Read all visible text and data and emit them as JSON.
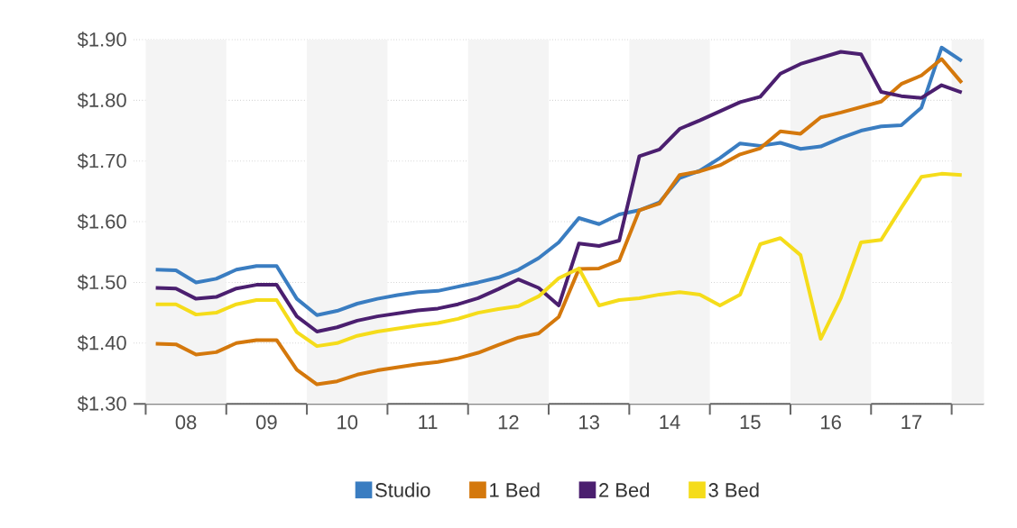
{
  "chart_data": {
    "type": "line",
    "x": [
      7.625,
      7.875,
      8.125,
      8.375,
      8.625,
      8.875,
      9.125,
      9.375,
      9.625,
      9.875,
      10.125,
      10.375,
      10.625,
      10.875,
      11.125,
      11.375,
      11.625,
      11.875,
      12.125,
      12.375,
      12.625,
      12.875,
      13.125,
      13.375,
      13.625,
      13.875,
      14.125,
      14.375,
      14.625,
      14.875,
      15.125,
      15.375,
      15.625,
      15.875,
      16.125,
      16.375,
      16.625,
      16.875,
      17.125,
      17.375,
      17.625
    ],
    "series": [
      {
        "name": "Studio",
        "color": "#3a7dc1",
        "values": [
          1.521,
          1.52,
          1.5,
          1.506,
          1.521,
          1.527,
          1.527,
          1.473,
          1.446,
          1.453,
          1.465,
          1.473,
          1.479,
          1.484,
          1.486,
          1.493,
          1.5,
          1.508,
          1.521,
          1.54,
          1.566,
          1.606,
          1.596,
          1.612,
          1.619,
          1.632,
          1.672,
          1.684,
          1.705,
          1.729,
          1.725,
          1.73,
          1.72,
          1.724,
          1.738,
          1.75,
          1.757,
          1.759,
          1.788,
          1.887,
          1.865
        ]
      },
      {
        "name": "1 Bed",
        "color": "#d4780c",
        "values": [
          1.399,
          1.398,
          1.381,
          1.385,
          1.4,
          1.405,
          1.405,
          1.356,
          1.332,
          1.337,
          1.348,
          1.355,
          1.36,
          1.365,
          1.369,
          1.375,
          1.384,
          1.397,
          1.409,
          1.416,
          1.443,
          1.522,
          1.523,
          1.536,
          1.619,
          1.63,
          1.677,
          1.683,
          1.693,
          1.711,
          1.721,
          1.749,
          1.745,
          1.772,
          1.78,
          1.789,
          1.798,
          1.827,
          1.841,
          1.868,
          1.829
        ]
      },
      {
        "name": "2 Bed",
        "color": "#4b1f6f",
        "values": [
          1.491,
          1.49,
          1.473,
          1.476,
          1.49,
          1.496,
          1.496,
          1.444,
          1.419,
          1.426,
          1.437,
          1.444,
          1.449,
          1.454,
          1.457,
          1.464,
          1.474,
          1.489,
          1.505,
          1.491,
          1.462,
          1.564,
          1.56,
          1.569,
          1.708,
          1.719,
          1.753,
          1.767,
          1.782,
          1.797,
          1.806,
          1.844,
          1.86,
          1.87,
          1.88,
          1.876,
          1.814,
          1.807,
          1.804,
          1.825,
          1.813
        ]
      },
      {
        "name": "3 Bed",
        "color": "#f5dc1a",
        "values": [
          1.464,
          1.464,
          1.447,
          1.45,
          1.464,
          1.471,
          1.471,
          1.418,
          1.395,
          1.4,
          1.412,
          1.419,
          1.424,
          1.429,
          1.433,
          1.44,
          1.45,
          1.456,
          1.461,
          1.477,
          1.507,
          1.523,
          1.462,
          1.471,
          1.474,
          1.48,
          1.484,
          1.48,
          1.462,
          1.48,
          1.563,
          1.573,
          1.545,
          1.407,
          1.474,
          1.566,
          1.57,
          1.623,
          1.674,
          1.679,
          1.677
        ]
      }
    ],
    "xlim": [
      7.35,
      17.9
    ],
    "xticks": [
      {
        "value": 7.5,
        "label": null
      },
      {
        "value": 8.5,
        "label": null
      },
      {
        "value": 9.5,
        "label": null
      },
      {
        "value": 10.5,
        "label": null
      },
      {
        "value": 11.5,
        "label": null
      },
      {
        "value": 12.5,
        "label": null
      },
      {
        "value": 13.5,
        "label": null
      },
      {
        "value": 14.5,
        "label": null
      },
      {
        "value": 15.5,
        "label": null
      },
      {
        "value": 16.5,
        "label": null
      },
      {
        "value": 17.5,
        "label": null
      },
      {
        "value": 8,
        "label": "08"
      },
      {
        "value": 9,
        "label": "09"
      },
      10,
      11,
      12,
      13,
      14,
      15,
      16,
      17
    ],
    "ylim": [
      1.3,
      1.9
    ],
    "yticks": [
      {
        "value": 1.3,
        "label": "$1.30"
      },
      {
        "value": 1.4,
        "label": "$1.40"
      },
      {
        "value": 1.5,
        "label": "$1.50"
      },
      {
        "value": 1.6,
        "label": "$1.60"
      },
      {
        "value": 1.7,
        "label": "$1.70"
      },
      {
        "value": 1.8,
        "label": "$1.80"
      },
      {
        "value": 1.9,
        "label": "$1.90"
      }
    ],
    "bands": [
      {
        "axis": "x",
        "from": 7.5,
        "to": 8.5,
        "color": "#f4f4f4"
      },
      {
        "axis": "x",
        "from": 9.5,
        "to": 10.5,
        "color": "#f4f4f4"
      },
      {
        "axis": "x",
        "from": 11.5,
        "to": 12.5,
        "color": "#f4f4f4"
      },
      {
        "axis": "x",
        "from": 13.5,
        "to": 14.5,
        "color": "#f4f4f4"
      },
      {
        "axis": "x",
        "from": 15.5,
        "to": 16.5,
        "color": "#f4f4f4"
      },
      {
        "axis": "x",
        "from": 17.5,
        "to": 17.9,
        "color": "#f4f4f4"
      }
    ],
    "grid": "y",
    "legend": "bottom",
    "marker": "none",
    "line_style": "solid"
  }
}
